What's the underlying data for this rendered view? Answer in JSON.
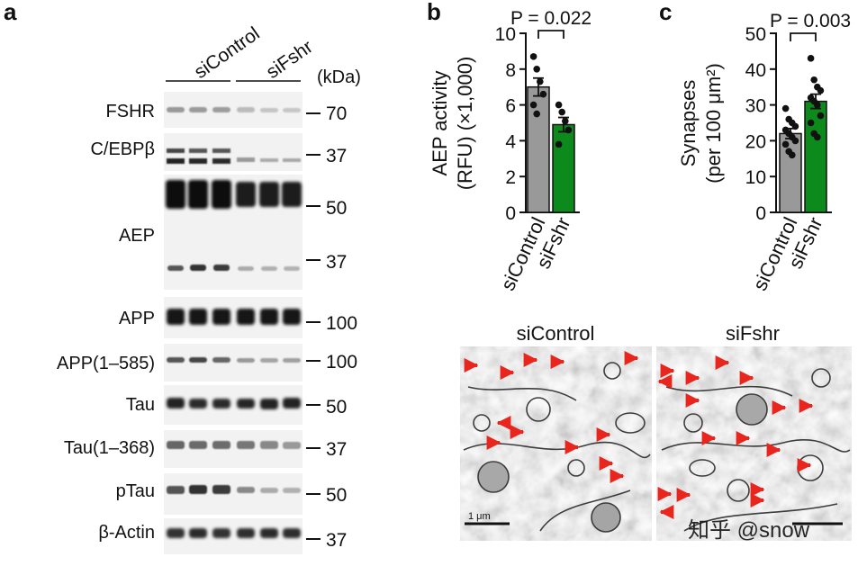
{
  "panels": {
    "a": {
      "label": "a",
      "groups": [
        "siControl",
        "siFshr"
      ],
      "kda_label": "(kDa)",
      "blots": [
        {
          "name": "FSHR",
          "markers": [
            "70"
          ]
        },
        {
          "name": "C/EBPβ",
          "markers": [
            "37"
          ]
        },
        {
          "name": "AEP",
          "markers": [
            "50",
            "37"
          ]
        },
        {
          "name": "APP",
          "markers": [
            "100"
          ]
        },
        {
          "name": "APP(1–585)",
          "markers": [
            "100"
          ]
        },
        {
          "name": "Tau",
          "markers": [
            "50"
          ]
        },
        {
          "name": "Tau(1–368)",
          "markers": [
            "37"
          ]
        },
        {
          "name": "pTau",
          "markers": [
            "50"
          ]
        },
        {
          "name": "β-Actin",
          "markers": [
            "37"
          ]
        }
      ]
    },
    "b": {
      "label": "b"
    },
    "c": {
      "label": "c"
    },
    "em": {
      "titles": [
        "siControl",
        "siFshr"
      ],
      "scale_label": "1 μm",
      "watermark": "知乎 @snow"
    }
  },
  "chart_data": [
    {
      "type": "bar",
      "panel": "b",
      "categories": [
        "siControl",
        "siFshr"
      ],
      "values": [
        7.0,
        4.9
      ],
      "errors": [
        0.5,
        0.4
      ],
      "points": [
        [
          8.7,
          8.0,
          7.3,
          6.6,
          6.0,
          5.5
        ],
        [
          6.0,
          5.6,
          5.1,
          4.6,
          3.8
        ]
      ],
      "colors": [
        "#999999",
        "#0d8a1c"
      ],
      "ylabel_line1": "AEP activity",
      "ylabel_line2": "(RFU) (×1,000)",
      "ylim": [
        0,
        10
      ],
      "yticks": [
        0,
        2,
        4,
        6,
        8,
        10
      ],
      "annotation": "P = 0.022"
    },
    {
      "type": "bar",
      "panel": "c",
      "categories": [
        "siControl",
        "siFshr"
      ],
      "values": [
        22.0,
        31.0
      ],
      "errors": [
        1.4,
        2.0
      ],
      "points": [
        [
          29,
          26,
          25,
          24,
          23,
          22,
          21,
          20,
          19,
          17,
          16
        ],
        [
          43,
          37,
          35,
          34,
          32,
          31,
          30,
          27,
          25,
          22,
          21
        ]
      ],
      "colors": [
        "#999999",
        "#0d8a1c"
      ],
      "ylabel_line1": "Synapses",
      "ylabel_line2": "(per 100 μm²)",
      "ylim": [
        0,
        50
      ],
      "yticks": [
        0,
        10,
        20,
        30,
        40,
        50
      ],
      "annotation": "P = 0.003"
    }
  ]
}
